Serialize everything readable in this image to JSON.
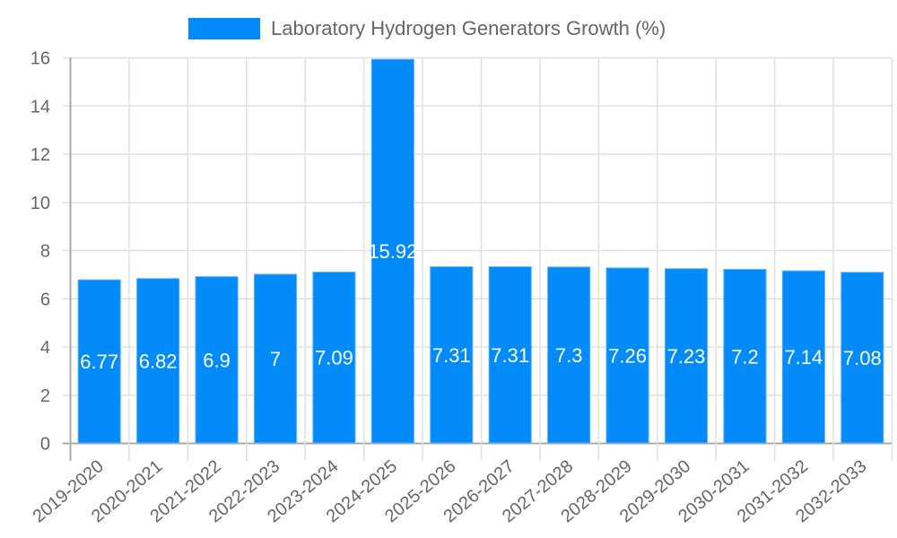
{
  "legend": {
    "label": "Laboratory Hydrogen Generators Growth (%)",
    "color": "#038cf9"
  },
  "chart_data": {
    "type": "bar",
    "title": "",
    "xlabel": "",
    "ylabel": "",
    "ylim": [
      0,
      16
    ],
    "yticks": [
      0,
      2,
      4,
      6,
      8,
      10,
      12,
      14,
      16
    ],
    "grid": true,
    "legend_position": "top",
    "categories": [
      "2019-2020",
      "2020-2021",
      "2021-2022",
      "2022-2023",
      "2023-2024",
      "2024-2025",
      "2025-2026",
      "2026-2027",
      "2027-2028",
      "2028-2029",
      "2029-2030",
      "2030-2031",
      "2031-2032",
      "2032-2033"
    ],
    "series": [
      {
        "name": "Laboratory Hydrogen Generators Growth (%)",
        "color": "#038cf9",
        "values": [
          6.77,
          6.82,
          6.9,
          7,
          7.09,
          15.92,
          7.31,
          7.31,
          7.3,
          7.26,
          7.23,
          7.2,
          7.14,
          7.08
        ]
      }
    ]
  }
}
